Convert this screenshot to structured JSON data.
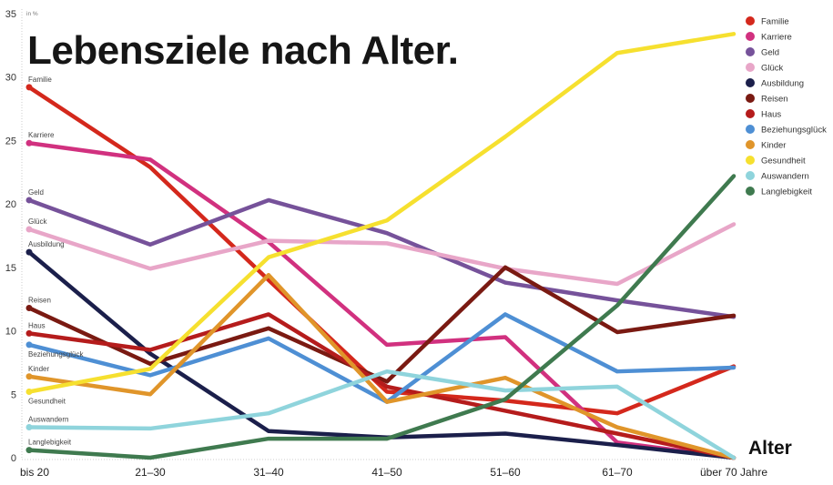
{
  "chart_data": {
    "type": "line",
    "title": "Lebensziele nach Alter.",
    "xlabel": "Alter",
    "ylabel": "in %",
    "ylim": [
      0,
      35
    ],
    "yticks": [
      0,
      5,
      10,
      15,
      20,
      25,
      30,
      35
    ],
    "grid": false,
    "legend_placement": "top-right",
    "categories": [
      "bis 20",
      "21–30",
      "31–40",
      "41–50",
      "51–60",
      "61–70",
      "über 70 Jahre"
    ],
    "series": [
      {
        "name": "Familie",
        "color": "#d4281c",
        "values": [
          29.2,
          22.9,
          14.0,
          5.2,
          4.5,
          3.5,
          7.2
        ]
      },
      {
        "name": "Karriere",
        "color": "#d1317f",
        "values": [
          24.8,
          23.5,
          17.0,
          8.9,
          9.5,
          1.2,
          0
        ]
      },
      {
        "name": "Geld",
        "color": "#76529a",
        "values": [
          20.3,
          16.8,
          20.3,
          17.7,
          13.8,
          12.4,
          11.1
        ]
      },
      {
        "name": "Glück",
        "color": "#e8a6c8",
        "values": [
          18.0,
          14.9,
          17.1,
          16.9,
          14.9,
          13.7,
          18.4
        ]
      },
      {
        "name": "Ausbildung",
        "color": "#1b1f4b",
        "values": [
          16.2,
          8.2,
          2.1,
          1.6,
          1.9,
          1.0,
          0
        ]
      },
      {
        "name": "Reisen",
        "color": "#7a1a12",
        "values": [
          11.8,
          7.4,
          10.2,
          6.0,
          15.0,
          9.9,
          11.2
        ]
      },
      {
        "name": "Haus",
        "color": "#b51c1c",
        "values": [
          9.8,
          8.5,
          11.3,
          5.6,
          3.7,
          1.9,
          0
        ]
      },
      {
        "name": "Beziehungsglück",
        "color": "#4e8fd4",
        "values": [
          8.9,
          6.5,
          9.4,
          4.4,
          11.3,
          6.8,
          7.1
        ]
      },
      {
        "name": "Kinder",
        "color": "#e0952a",
        "values": [
          6.4,
          5.0,
          14.4,
          4.4,
          6.3,
          2.4,
          0
        ]
      },
      {
        "name": "Gesundheit",
        "color": "#f6e02f",
        "values": [
          5.2,
          7.0,
          15.8,
          18.7,
          25.3,
          31.9,
          33.4
        ]
      },
      {
        "name": "Auswandern",
        "color": "#8fd4dc",
        "values": [
          2.4,
          2.3,
          3.5,
          6.8,
          5.3,
          5.6,
          0
        ]
      },
      {
        "name": "Langlebigkeit",
        "color": "#3f7a4f",
        "values": [
          0.6,
          0,
          1.5,
          1.5,
          4.6,
          12.0,
          22.2
        ]
      }
    ]
  }
}
